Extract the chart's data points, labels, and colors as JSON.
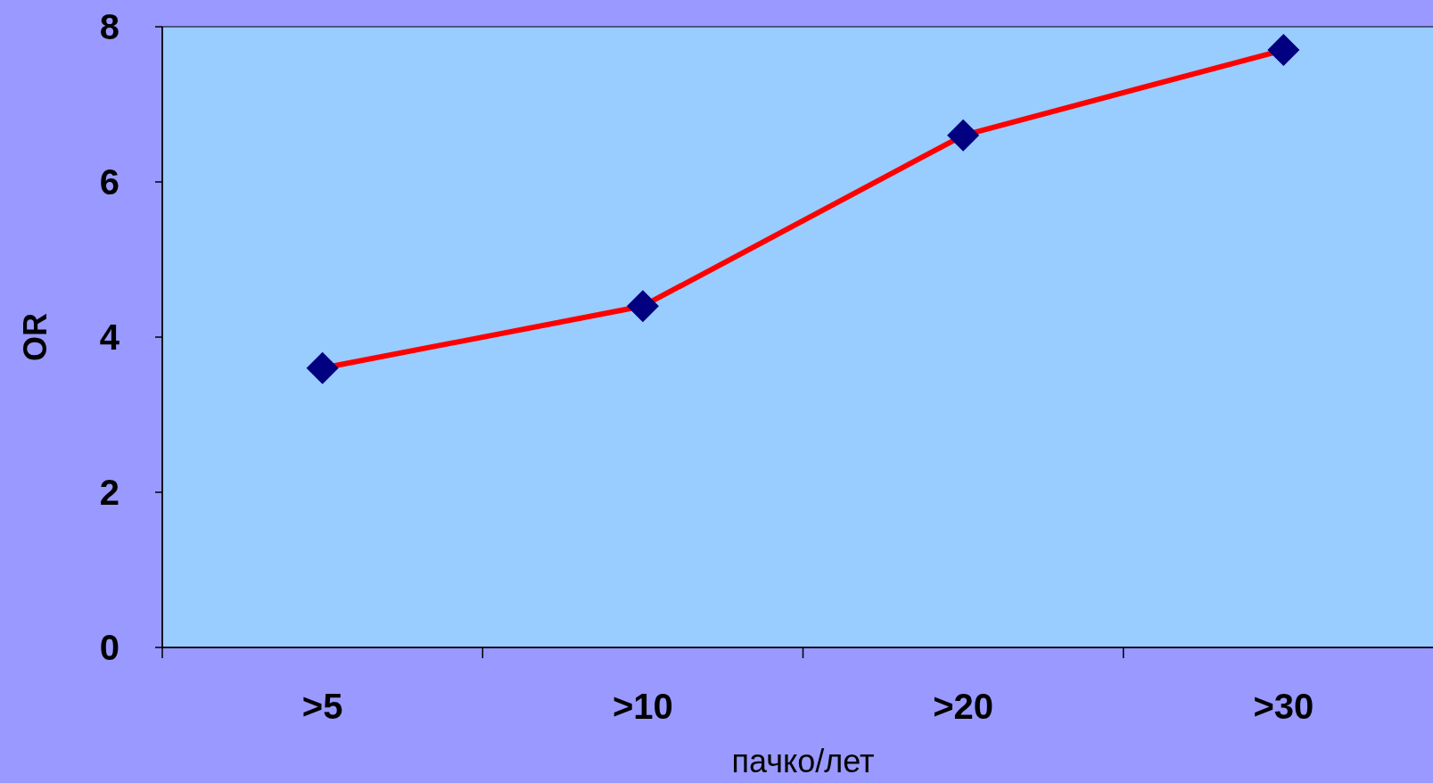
{
  "chart_data": {
    "type": "line",
    "categories": [
      ">5",
      ">10",
      ">20",
      ">30"
    ],
    "series": [
      {
        "color": "#ff0000",
        "values": [
          3.6,
          4.4,
          6.6,
          7.7
        ]
      }
    ],
    "marker": "diamond",
    "ylim": [
      0,
      8
    ],
    "yticks": [
      0,
      2,
      4,
      6,
      8
    ],
    "xlabel": "пачко/лет",
    "ylabel": "OR",
    "grid": false
  }
}
